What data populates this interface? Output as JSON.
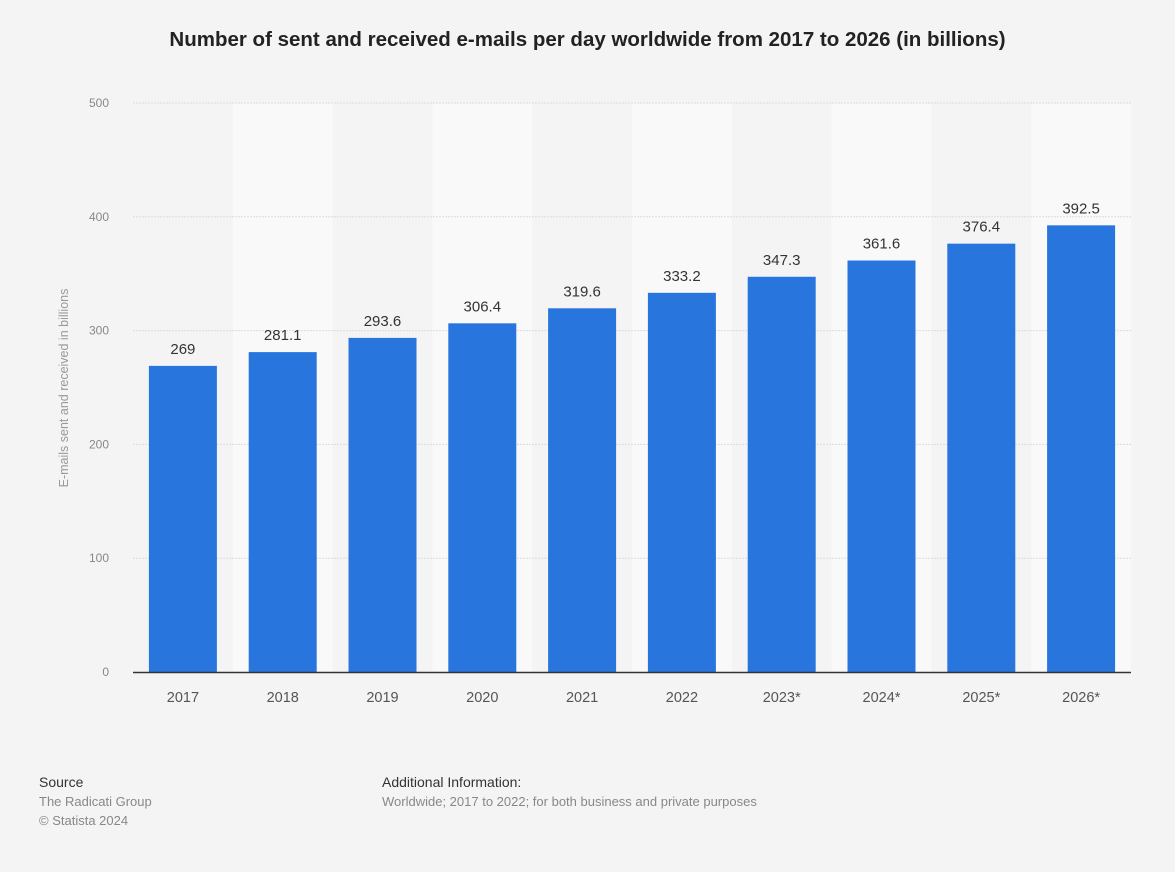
{
  "chart_data": {
    "type": "bar",
    "title": "Number of sent and received e-mails per day worldwide from 2017 to 2026 (in billions)",
    "xlabel": "",
    "ylabel": "E-mails sent and received in billions",
    "categories": [
      "2017",
      "2018",
      "2019",
      "2020",
      "2021",
      "2022",
      "2023*",
      "2024*",
      "2025*",
      "2026*"
    ],
    "values": [
      269,
      281.1,
      293.6,
      306.4,
      319.6,
      333.2,
      347.3,
      361.6,
      376.4,
      392.5
    ],
    "data_labels": [
      "269",
      "281.1",
      "293.6",
      "306.4",
      "319.6",
      "333.2",
      "347.3",
      "361.6",
      "376.4",
      "392.5"
    ],
    "ylim": [
      0,
      500
    ],
    "yticks": [
      0,
      100,
      200,
      300,
      400,
      500
    ],
    "grid": true,
    "bar_color": "#2876dd"
  },
  "footer": {
    "source_heading": "Source",
    "source": "The Radicati Group",
    "copyright": "© Statista 2024",
    "additional_heading": "Additional Information:",
    "additional": "Worldwide; 2017 to 2022; for both business and private purposes"
  }
}
